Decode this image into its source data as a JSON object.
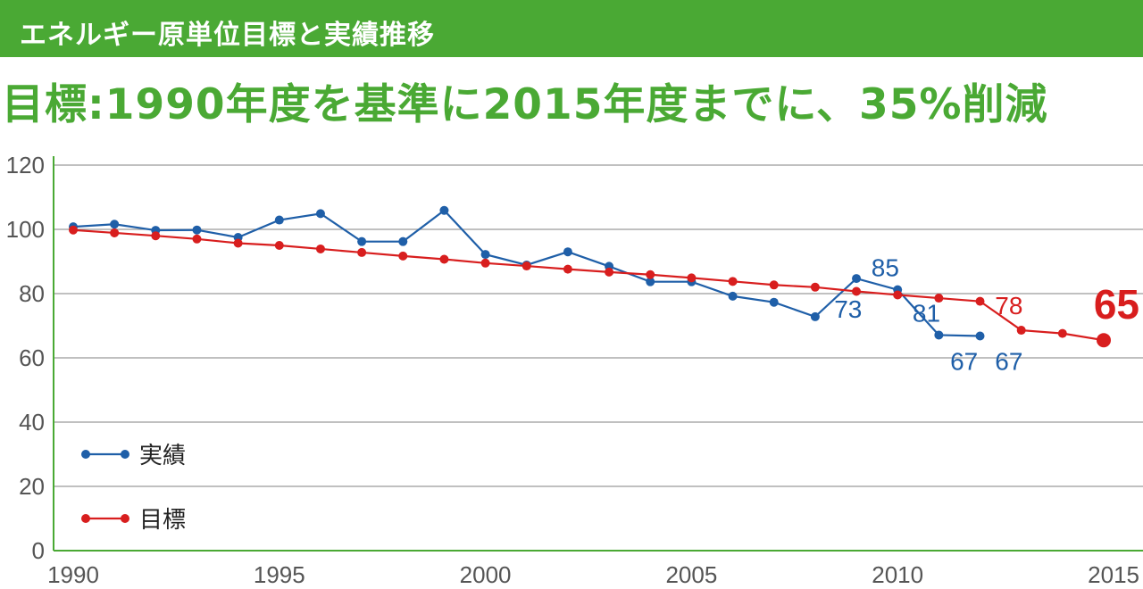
{
  "header": {
    "title": "エネルギー原単位目標と実績推移",
    "subtitle": "目標:1990年度を基準に2015年度までに、35%削減"
  },
  "chart_data": {
    "type": "line",
    "x": [
      1990,
      1991,
      1992,
      1993,
      1994,
      1995,
      1996,
      1997,
      1998,
      1999,
      2000,
      2001,
      2002,
      2003,
      2004,
      2005,
      2006,
      2007,
      2008,
      2009,
      2010,
      2011,
      2012,
      2013,
      2014,
      2015
    ],
    "x_ticks": [
      1990,
      1995,
      2000,
      2005,
      2010,
      2015
    ],
    "y_ticks": [
      0,
      20,
      40,
      60,
      80,
      100,
      120
    ],
    "xlim": [
      1990,
      2015
    ],
    "ylim": [
      0,
      120
    ],
    "grid": true,
    "legend_position": "bottom-left",
    "series": [
      {
        "name": "実績",
        "color": "#1f5fa8",
        "values": [
          100.8,
          101.6,
          99.7,
          99.8,
          97.5,
          102.9,
          104.9,
          96.2,
          96.2,
          105.9,
          92.2,
          88.9,
          93.0,
          88.5,
          83.7,
          83.7,
          79.2,
          77.3,
          72.8,
          84.7,
          81.2,
          67.1,
          66.8,
          null,
          null,
          null
        ]
      },
      {
        "name": "目標",
        "color": "#d81e1e",
        "values": [
          99.8,
          98.9,
          98.0,
          97.0,
          95.7,
          95.0,
          93.9,
          92.8,
          91.7,
          90.7,
          89.5,
          88.6,
          87.6,
          86.7,
          85.9,
          84.9,
          83.8,
          82.7,
          82.0,
          80.7,
          79.6,
          78.6,
          77.6,
          68.6,
          67.6,
          65.5
        ]
      }
    ],
    "annotations": [
      {
        "text": "73",
        "series": "実績",
        "x": 2008.8,
        "color": "#1f5fa8"
      },
      {
        "text": "85",
        "series": "実績",
        "x": 2009.7,
        "color": "#1f5fa8"
      },
      {
        "text": "81",
        "series": "実績",
        "x": 2010.7,
        "color": "#1f5fa8"
      },
      {
        "text": "67",
        "series": "実績",
        "x": 2011.7,
        "color": "#1f5fa8"
      },
      {
        "text": "67",
        "series": "実績",
        "x": 2012.7,
        "color": "#1f5fa8"
      },
      {
        "text": "78",
        "series": "目標",
        "x": 2012.7,
        "color": "#d81e1e"
      },
      {
        "text": "65",
        "series": "目標",
        "x": 2015.5,
        "color": "#d81e1e"
      }
    ]
  }
}
